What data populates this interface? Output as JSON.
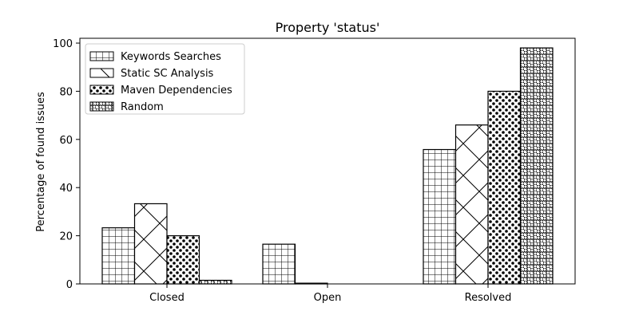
{
  "chart_data": {
    "type": "bar",
    "title": "Property 'status'",
    "xlabel": "",
    "ylabel": "Percentage of found issues",
    "categories": [
      "Closed",
      "Open",
      "Resolved"
    ],
    "series": [
      {
        "name": "Keywords Searches",
        "values": [
          23.3,
          16.5,
          55.8
        ],
        "pattern": "grid"
      },
      {
        "name": "Static SC Analysis",
        "values": [
          33.3,
          0.3,
          66.0
        ],
        "pattern": "cross"
      },
      {
        "name": "Maven Dependencies",
        "values": [
          20.0,
          0.0,
          80.0
        ],
        "pattern": "dots"
      },
      {
        "name": "Random",
        "values": [
          1.5,
          0.0,
          98.0
        ],
        "pattern": "rings"
      }
    ],
    "ylim": [
      0,
      102
    ],
    "yticks": [
      0,
      20,
      40,
      60,
      80,
      100
    ],
    "grid": false,
    "legend_position": "top-left",
    "colors": {
      "bar_fill": "#ffffff",
      "bar_edge": "#000000",
      "axis": "#000000"
    }
  }
}
